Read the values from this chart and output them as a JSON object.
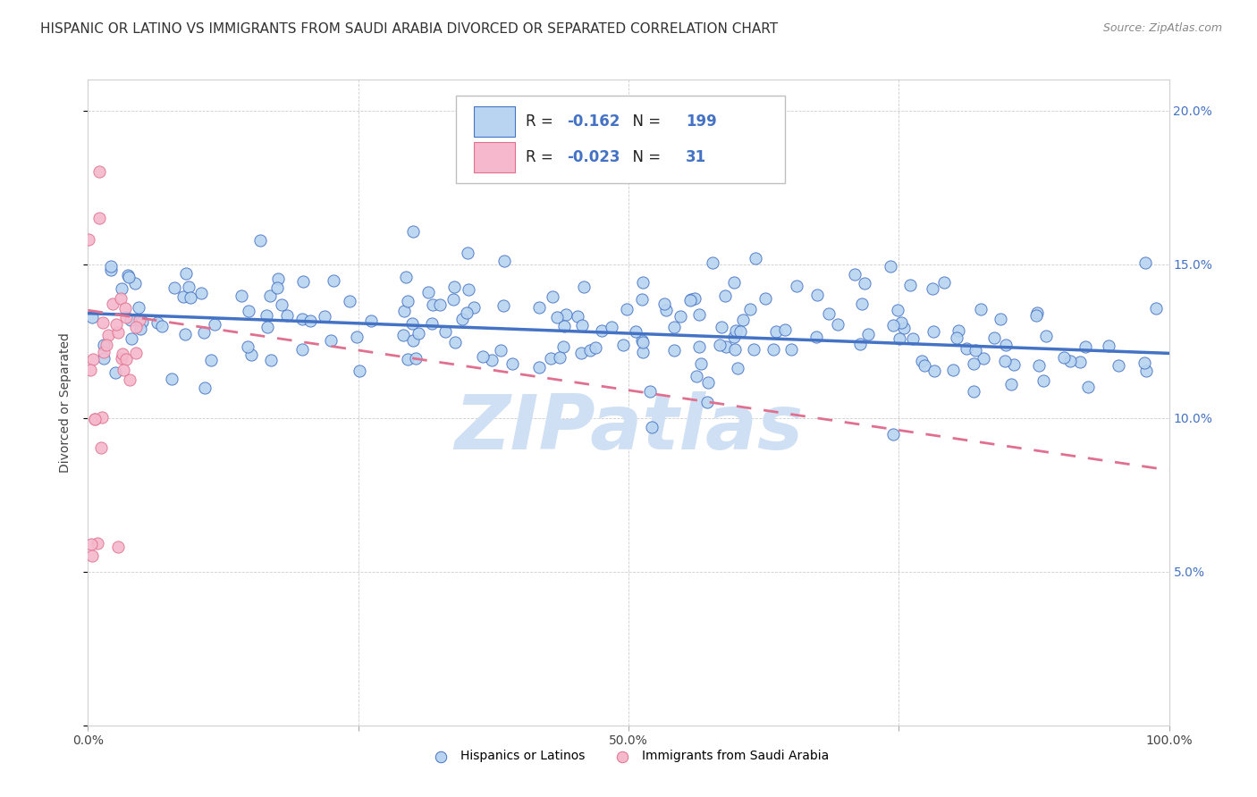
{
  "title": "HISPANIC OR LATINO VS IMMIGRANTS FROM SAUDI ARABIA DIVORCED OR SEPARATED CORRELATION CHART",
  "source": "Source: ZipAtlas.com",
  "ylabel": "Divorced or Separated",
  "series1_name": "Hispanics or Latinos",
  "series2_name": "Immigrants from Saudi Arabia",
  "R1": -0.162,
  "N1": 199,
  "R2": -0.023,
  "N2": 31,
  "color1_fill": "#b8d4f0",
  "color1_edge": "#4472c4",
  "color2_fill": "#f5b8cc",
  "color2_edge": "#e07090",
  "line1_color": "#4472c4",
  "line2_color": "#e07090",
  "xlim": [
    0,
    100
  ],
  "ylim": [
    0,
    21
  ],
  "yticks": [
    0,
    5.0,
    10.0,
    15.0,
    20.0
  ],
  "ytick_labels_right": [
    "",
    "5.0%",
    "10.0%",
    "15.0%",
    "20.0%"
  ],
  "xticks": [
    0,
    25,
    50,
    75,
    100
  ],
  "xtick_labels": [
    "0.0%",
    "",
    "50.0%",
    "",
    "100.0%"
  ],
  "background_color": "#ffffff",
  "grid_color": "#c8c8c8",
  "title_fontsize": 11,
  "source_fontsize": 9,
  "axis_label_fontsize": 10,
  "tick_fontsize": 10,
  "legend_fontsize": 12,
  "watermark_text": "ZIPatlas",
  "watermark_color": "#d0e0f4",
  "line1_intercept": 13.4,
  "line1_slope": -0.013,
  "line2_intercept": 13.5,
  "line2_slope": -0.052
}
